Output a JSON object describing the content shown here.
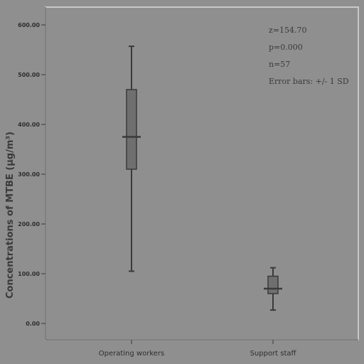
{
  "chart_data": {
    "type": "boxplot",
    "ylabel": "Concentrations of MTBE (μg/m³)",
    "xlabel": "",
    "ylim": [
      0,
      600
    ],
    "yticks": [
      "0.00",
      "100.00",
      "200.00",
      "300.00",
      "400.00",
      "500.00",
      "600.00"
    ],
    "categories": [
      "Operating workers",
      "Support staff"
    ],
    "boxes": [
      {
        "category": "Operating workers",
        "whisker_low": 105,
        "q1": 310,
        "median": 375,
        "q3": 470,
        "whisker_high": 557
      },
      {
        "category": "Support staff",
        "whisker_low": 27,
        "q1": 60,
        "median": 70,
        "q3": 95,
        "whisker_high": 112
      }
    ],
    "annotations": [
      "z=154.70",
      "p=0.000",
      "n=57",
      "Error bars: +/- 1 SD"
    ],
    "grid": false,
    "colors": {
      "background": "#8f8f8f",
      "box_fill": "#6f6f6f",
      "line": "#3a3a3a"
    }
  }
}
